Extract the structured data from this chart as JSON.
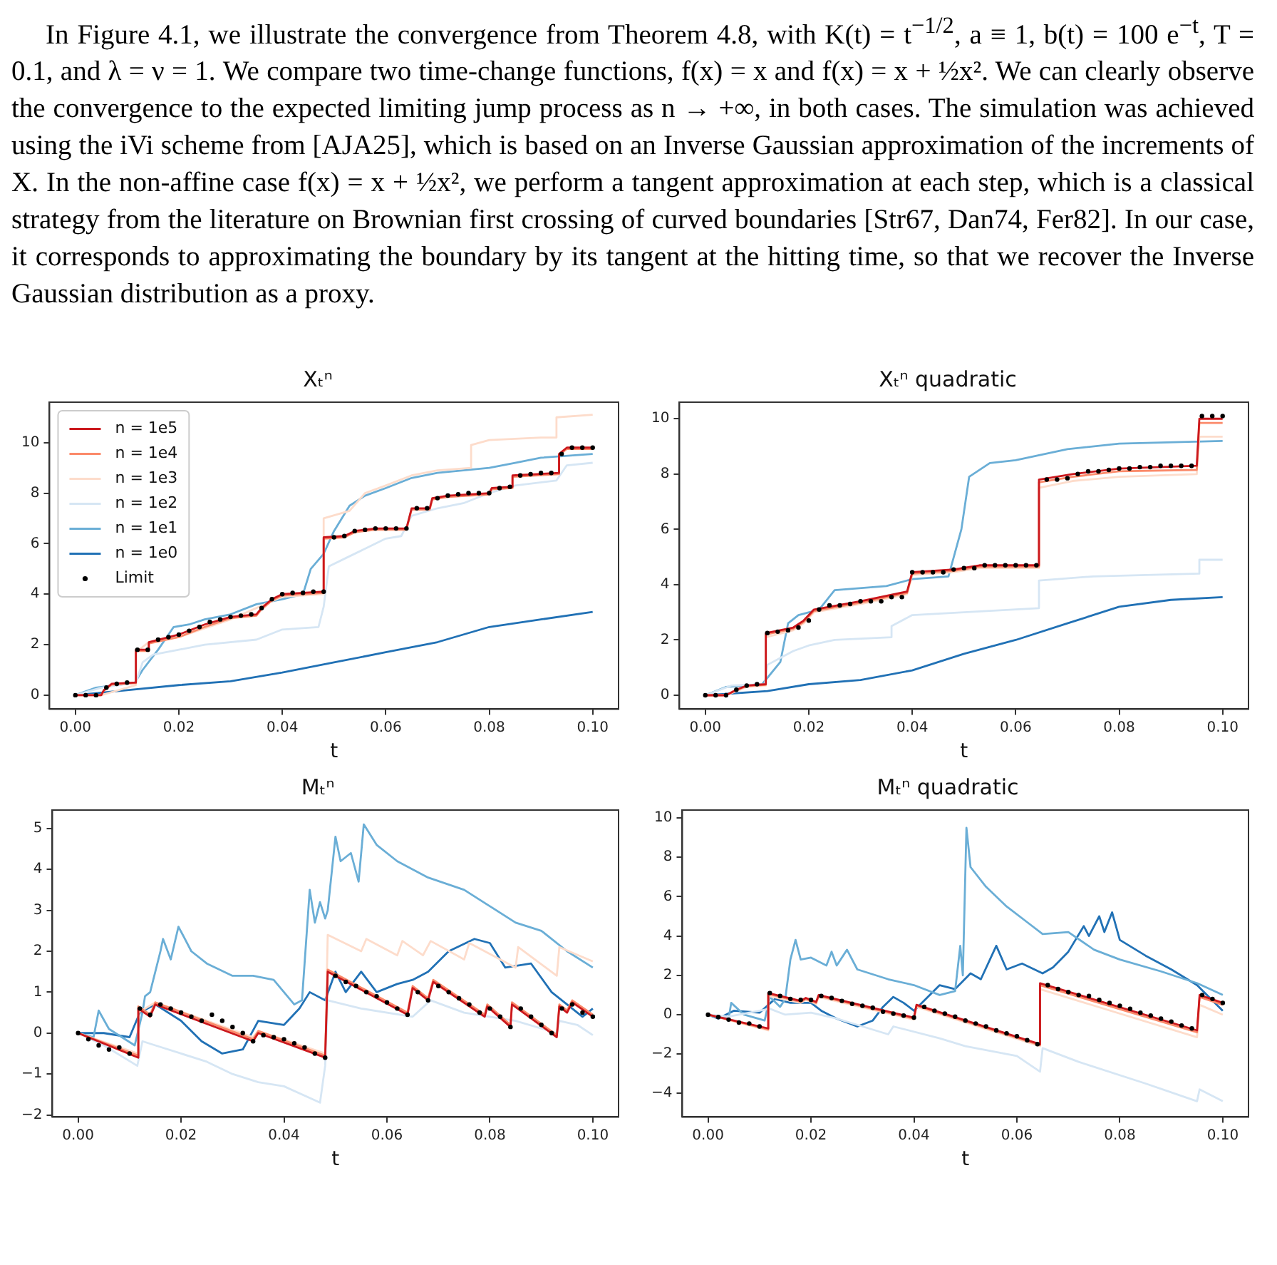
{
  "chart_data": [
    {
      "type": "other",
      "annotations": [
        "In Figure 4.1, we illustrate the convergence from Theorem 4.8, with K(t) = t$^{−1/2}$, a ≡ 1, b(t) = 100 e$^{−t}$, T = 0.1, and λ = ν = 1. We compare two time-change functions, f(x) = x and f(x) = x + ½x². We can clearly observe the convergence to the expected limiting jump process as n → +∞, in both cases. The simulation was achieved using the iVi scheme from [AJA25], which is based on an Inverse Gaussian approximation of the increments of X. In the non-affine case f(x) = x + ½x², we perform a tangent approximation at each step, which is a classical strategy from the literature on Brownian first crossing of curved boundaries [Str67, Dan74, Fer82]. In our case, it corresponds to approximating the boundary by its tangent at the hitting time, so that we recover the Inverse Gaussian distribution as a proxy."
      ]
    },
    {
      "type": "line",
      "title": "Xₜⁿ",
      "xlabel": "t",
      "xlim": [
        -0.005,
        0.105
      ],
      "xticks": [
        {
          "value": 0,
          "label": "0.00"
        },
        {
          "value": 0.02,
          "label": "0.02"
        },
        {
          "value": 0.04,
          "label": "0.04"
        },
        {
          "value": 0.06,
          "label": "0.06"
        },
        {
          "value": 0.08,
          "label": "0.08"
        },
        {
          "value": 0.1,
          "label": "0.10"
        }
      ],
      "ylim": [
        -0.55,
        11.6
      ],
      "yticks": [
        0,
        2,
        4,
        6,
        8,
        10
      ],
      "grid": false,
      "legend": "top left",
      "series": [
        {
          "name": "n = 1e5",
          "color": "#cb181d",
          "x": [
            0,
            0.005,
            0.0055,
            0.007,
            0.0117,
            0.0117,
            0.0142,
            0.0142,
            0.02,
            0.025,
            0.03,
            0.035,
            0.036,
            0.038,
            0.04,
            0.048,
            0.048,
            0.052,
            0.054,
            0.058,
            0.064,
            0.065,
            0.0685,
            0.069,
            0.072,
            0.08,
            0.0805,
            0.0845,
            0.0845,
            0.0935,
            0.0935,
            0.095,
            0.1
          ],
          "values": [
            0,
            0,
            0.2,
            0.45,
            0.5,
            1.8,
            1.8,
            2.1,
            2.4,
            2.8,
            3.1,
            3.2,
            3.45,
            3.8,
            4.0,
            4.1,
            6.25,
            6.3,
            6.5,
            6.6,
            6.6,
            7.4,
            7.4,
            7.8,
            7.9,
            8.0,
            8.2,
            8.25,
            8.7,
            8.8,
            9.55,
            9.8,
            9.8
          ]
        },
        {
          "name": "n = 1e4",
          "color": "#fb8a6a",
          "x": [
            0,
            0.005,
            0.0055,
            0.007,
            0.0117,
            0.0117,
            0.0142,
            0.0142,
            0.02,
            0.025,
            0.03,
            0.035,
            0.036,
            0.038,
            0.04,
            0.048,
            0.048,
            0.052,
            0.054,
            0.058,
            0.064,
            0.065,
            0.0685,
            0.069,
            0.072,
            0.08,
            0.0805,
            0.0845,
            0.0845,
            0.0935,
            0.0935,
            0.095,
            0.1
          ],
          "values": [
            0,
            0,
            0.18,
            0.42,
            0.48,
            1.75,
            1.75,
            2.05,
            2.3,
            2.7,
            3.05,
            3.15,
            3.4,
            3.75,
            3.95,
            4.05,
            6.2,
            6.25,
            6.45,
            6.55,
            6.55,
            7.35,
            7.35,
            7.75,
            7.85,
            7.95,
            8.15,
            8.2,
            8.65,
            8.75,
            9.5,
            9.75,
            9.75
          ]
        },
        {
          "name": "n = 1e3",
          "color": "#fddccb",
          "x": [
            0,
            0.005,
            0.0117,
            0.0117,
            0.0142,
            0.02,
            0.03,
            0.04,
            0.048,
            0.048,
            0.053,
            0.056,
            0.06,
            0.065,
            0.07,
            0.0765,
            0.0765,
            0.08,
            0.09,
            0.093,
            0.093,
            0.1
          ],
          "values": [
            0,
            0,
            0.4,
            1.7,
            2.1,
            2.3,
            3.0,
            3.9,
            4.0,
            7.0,
            7.3,
            8.0,
            8.3,
            8.7,
            8.9,
            9.0,
            9.9,
            10.1,
            10.2,
            10.2,
            11.0,
            11.1
          ]
        },
        {
          "name": "n = 1e2",
          "color": "#d6e6f4",
          "x": [
            0,
            0.005,
            0.0117,
            0.013,
            0.015,
            0.02,
            0.025,
            0.035,
            0.04,
            0.047,
            0.048,
            0.049,
            0.052,
            0.056,
            0.06,
            0.063,
            0.065,
            0.07,
            0.075,
            0.08,
            0.085,
            0.093,
            0.095,
            0.1
          ],
          "values": [
            0,
            0.3,
            0.5,
            1.3,
            1.6,
            1.8,
            2.0,
            2.2,
            2.6,
            2.7,
            3.5,
            5.1,
            5.4,
            5.8,
            6.2,
            6.3,
            7.1,
            7.4,
            7.6,
            8.0,
            8.3,
            8.5,
            9.1,
            9.2
          ]
        },
        {
          "name": "n = 1e1",
          "color": "#6aaed6",
          "x": [
            0,
            0.004,
            0.008,
            0.0115,
            0.013,
            0.016,
            0.019,
            0.022,
            0.025,
            0.03,
            0.035,
            0.04,
            0.044,
            0.0455,
            0.048,
            0.05,
            0.053,
            0.056,
            0.06,
            0.065,
            0.07,
            0.08,
            0.085,
            0.09,
            0.1
          ],
          "values": [
            0,
            0.3,
            0.4,
            0.5,
            1.0,
            1.8,
            2.7,
            2.8,
            3.0,
            3.2,
            3.6,
            3.8,
            4.0,
            5.0,
            5.6,
            6.5,
            7.5,
            7.9,
            8.2,
            8.6,
            8.8,
            9.0,
            9.2,
            9.4,
            9.55
          ]
        },
        {
          "name": "n = 1e0",
          "color": "#2171b5",
          "x": [
            0,
            0.005,
            0.01,
            0.02,
            0.03,
            0.04,
            0.05,
            0.06,
            0.07,
            0.08,
            0.09,
            0.1
          ],
          "values": [
            0,
            0.1,
            0.2,
            0.4,
            0.55,
            0.9,
            1.3,
            1.7,
            2.1,
            2.7,
            3.0,
            3.3
          ]
        },
        {
          "name": "Limit",
          "type": "scatter",
          "marker": "circle",
          "color": "#000000",
          "x": [
            0,
            0.002,
            0.004,
            0.006,
            0.008,
            0.01,
            0.012,
            0.014,
            0.016,
            0.018,
            0.02,
            0.022,
            0.024,
            0.026,
            0.028,
            0.03,
            0.032,
            0.034,
            0.036,
            0.038,
            0.04,
            0.042,
            0.044,
            0.046,
            0.048,
            0.05,
            0.052,
            0.054,
            0.056,
            0.058,
            0.06,
            0.062,
            0.064,
            0.066,
            0.068,
            0.07,
            0.072,
            0.074,
            0.076,
            0.078,
            0.08,
            0.082,
            0.084,
            0.086,
            0.088,
            0.09,
            0.092,
            0.094,
            0.096,
            0.098,
            0.1
          ],
          "values": [
            0,
            0,
            0,
            0.3,
            0.45,
            0.5,
            1.8,
            1.8,
            2.2,
            2.3,
            2.4,
            2.55,
            2.7,
            2.9,
            3.0,
            3.1,
            3.15,
            3.2,
            3.45,
            3.8,
            4.0,
            4.05,
            4.05,
            4.1,
            4.1,
            6.25,
            6.3,
            6.5,
            6.55,
            6.6,
            6.6,
            6.6,
            6.6,
            7.4,
            7.4,
            7.8,
            7.9,
            7.95,
            8.0,
            8.0,
            8.0,
            8.2,
            8.25,
            8.7,
            8.75,
            8.8,
            8.8,
            9.55,
            9.8,
            9.8,
            9.8
          ]
        }
      ]
    },
    {
      "type": "line",
      "title": "Xₜⁿ quadratic",
      "xlabel": "t",
      "xlim": [
        -0.005,
        0.105
      ],
      "xticks": [
        {
          "value": 0,
          "label": "0.00"
        },
        {
          "value": 0.02,
          "label": "0.02"
        },
        {
          "value": 0.04,
          "label": "0.04"
        },
        {
          "value": 0.06,
          "label": "0.06"
        },
        {
          "value": 0.08,
          "label": "0.08"
        },
        {
          "value": 0.1,
          "label": "0.10"
        }
      ],
      "ylim": [
        -0.5,
        10.6
      ],
      "yticks": [
        0,
        2,
        4,
        6,
        8,
        10
      ],
      "grid": false,
      "series": [
        {
          "color": "#cb181d",
          "x": [
            0,
            0.004,
            0.006,
            0.008,
            0.0117,
            0.0117,
            0.017,
            0.019,
            0.021,
            0.03,
            0.039,
            0.04,
            0.048,
            0.053,
            0.0645,
            0.0645,
            0.071,
            0.08,
            0.095,
            0.0955,
            0.1
          ],
          "values": [
            0,
            0,
            0.2,
            0.35,
            0.4,
            2.25,
            2.45,
            2.7,
            3.1,
            3.4,
            3.75,
            4.45,
            4.55,
            4.7,
            4.7,
            7.8,
            8.0,
            8.2,
            8.3,
            10.0,
            10.0
          ]
        },
        {
          "color": "#fb8a6a",
          "x": [
            0,
            0.004,
            0.006,
            0.008,
            0.0117,
            0.0117,
            0.017,
            0.019,
            0.021,
            0.03,
            0.039,
            0.04,
            0.048,
            0.053,
            0.0645,
            0.0645,
            0.071,
            0.08,
            0.095,
            0.0955,
            0.1
          ],
          "values": [
            0,
            0,
            0.18,
            0.33,
            0.38,
            2.2,
            2.4,
            2.65,
            3.05,
            3.35,
            3.7,
            4.4,
            4.5,
            4.65,
            4.65,
            7.7,
            7.9,
            8.1,
            8.15,
            9.85,
            9.85
          ]
        },
        {
          "color": "#fddccb",
          "x": [
            0,
            0.004,
            0.006,
            0.008,
            0.0117,
            0.0117,
            0.017,
            0.019,
            0.021,
            0.03,
            0.039,
            0.04,
            0.048,
            0.053,
            0.0645,
            0.0645,
            0.071,
            0.08,
            0.095,
            0.0955,
            0.1
          ],
          "values": [
            0,
            0,
            0.15,
            0.3,
            0.35,
            2.1,
            2.35,
            2.6,
            3.0,
            3.3,
            3.65,
            4.35,
            4.45,
            4.6,
            4.6,
            7.5,
            7.75,
            7.9,
            8.0,
            9.35,
            9.35
          ]
        },
        {
          "color": "#d6e6f4",
          "x": [
            0,
            0.005,
            0.0115,
            0.012,
            0.015,
            0.017,
            0.02,
            0.025,
            0.036,
            0.036,
            0.04,
            0.05,
            0.0645,
            0.0645,
            0.075,
            0.0955,
            0.0955,
            0.1
          ],
          "values": [
            0,
            0.35,
            0.4,
            1.1,
            1.4,
            1.6,
            1.8,
            2.0,
            2.1,
            2.5,
            2.9,
            3.0,
            3.15,
            4.15,
            4.3,
            4.4,
            4.9,
            4.9
          ]
        },
        {
          "color": "#6aaed6",
          "x": [
            0,
            0.004,
            0.011,
            0.0145,
            0.016,
            0.018,
            0.022,
            0.025,
            0.035,
            0.04,
            0.047,
            0.0495,
            0.051,
            0.055,
            0.06,
            0.065,
            0.07,
            0.08,
            0.1
          ],
          "values": [
            0,
            0.3,
            0.4,
            1.2,
            2.6,
            2.9,
            3.1,
            3.8,
            3.95,
            4.2,
            4.3,
            6.0,
            7.9,
            8.4,
            8.5,
            8.7,
            8.9,
            9.1,
            9.2
          ]
        },
        {
          "color": "#2171b5",
          "x": [
            0,
            0.012,
            0.02,
            0.03,
            0.04,
            0.05,
            0.06,
            0.07,
            0.08,
            0.09,
            0.1
          ],
          "values": [
            0,
            0.15,
            0.4,
            0.55,
            0.9,
            1.5,
            2.0,
            2.6,
            3.2,
            3.45,
            3.55
          ]
        },
        {
          "type": "scatter",
          "marker": "circle",
          "color": "#000000",
          "x": [
            0,
            0.002,
            0.004,
            0.006,
            0.008,
            0.01,
            0.012,
            0.014,
            0.016,
            0.018,
            0.02,
            0.022,
            0.024,
            0.026,
            0.028,
            0.03,
            0.032,
            0.034,
            0.036,
            0.038,
            0.04,
            0.042,
            0.044,
            0.046,
            0.048,
            0.05,
            0.052,
            0.054,
            0.056,
            0.058,
            0.06,
            0.062,
            0.064,
            0.066,
            0.068,
            0.07,
            0.072,
            0.074,
            0.076,
            0.078,
            0.08,
            0.082,
            0.084,
            0.086,
            0.088,
            0.09,
            0.092,
            0.094,
            0.096,
            0.098,
            0.1
          ],
          "values": [
            0,
            0,
            0,
            0.2,
            0.35,
            0.4,
            2.25,
            2.3,
            2.35,
            2.45,
            2.7,
            3.1,
            3.25,
            3.25,
            3.3,
            3.4,
            3.4,
            3.4,
            3.55,
            3.55,
            4.45,
            4.45,
            4.45,
            4.45,
            4.55,
            4.6,
            4.6,
            4.7,
            4.7,
            4.7,
            4.7,
            4.7,
            4.7,
            7.8,
            7.8,
            7.85,
            8.0,
            8.1,
            8.1,
            8.15,
            8.2,
            8.2,
            8.25,
            8.25,
            8.3,
            8.3,
            8.3,
            8.3,
            10.1,
            10.1,
            10.1
          ]
        }
      ]
    },
    {
      "type": "line",
      "title": "Mₜⁿ",
      "xlabel": "t",
      "xlim": [
        -0.005,
        0.105
      ],
      "xticks": [
        {
          "value": 0,
          "label": "0.00"
        },
        {
          "value": 0.02,
          "label": "0.02"
        },
        {
          "value": 0.04,
          "label": "0.04"
        },
        {
          "value": 0.06,
          "label": "0.06"
        },
        {
          "value": 0.08,
          "label": "0.08"
        },
        {
          "value": 0.1,
          "label": "0.10"
        }
      ],
      "ylim": [
        -2.05,
        5.45
      ],
      "yticks": [
        -2,
        -1,
        0,
        1,
        2,
        3,
        4,
        5
      ],
      "grid": false,
      "series": [
        {
          "color": "#cb181d",
          "x": [
            0,
            0.0117,
            0.0117,
            0.014,
            0.015,
            0.034,
            0.035,
            0.048,
            0.0485,
            0.064,
            0.065,
            0.068,
            0.069,
            0.079,
            0.0795,
            0.084,
            0.0843,
            0.093,
            0.0935,
            0.095,
            0.096,
            0.1
          ],
          "values": [
            0,
            -0.6,
            0.6,
            0.4,
            0.7,
            -0.2,
            0.0,
            -0.6,
            1.5,
            0.45,
            1.1,
            0.8,
            1.25,
            0.4,
            0.65,
            0.15,
            0.7,
            -0.1,
            0.65,
            0.5,
            0.75,
            0.4
          ]
        },
        {
          "color": "#fb8a6a",
          "x": [
            0,
            0.0117,
            0.0117,
            0.014,
            0.015,
            0.034,
            0.035,
            0.048,
            0.0485,
            0.064,
            0.065,
            0.068,
            0.069,
            0.079,
            0.0795,
            0.084,
            0.0843,
            0.093,
            0.0935,
            0.095,
            0.096,
            0.1
          ],
          "values": [
            0,
            -0.55,
            0.65,
            0.45,
            0.75,
            -0.15,
            0.05,
            -0.55,
            1.55,
            0.5,
            1.15,
            0.85,
            1.3,
            0.45,
            0.7,
            0.2,
            0.75,
            -0.05,
            0.7,
            0.55,
            0.8,
            0.45
          ]
        },
        {
          "color": "#fddccb",
          "x": [
            0,
            0.0117,
            0.0117,
            0.015,
            0.034,
            0.035,
            0.048,
            0.0485,
            0.055,
            0.056,
            0.062,
            0.063,
            0.067,
            0.0685,
            0.075,
            0.076,
            0.085,
            0.0855,
            0.093,
            0.0935,
            0.1
          ],
          "values": [
            0,
            -0.5,
            0.5,
            0.75,
            -0.1,
            0.05,
            -0.5,
            2.4,
            2.0,
            2.3,
            1.9,
            2.25,
            1.9,
            2.25,
            1.8,
            2.2,
            1.6,
            2.1,
            1.4,
            2.1,
            1.75
          ]
        },
        {
          "color": "#d6e6f4",
          "x": [
            0,
            0.005,
            0.0115,
            0.0125,
            0.015,
            0.02,
            0.025,
            0.03,
            0.035,
            0.04,
            0.047,
            0.048,
            0.0485,
            0.055,
            0.065,
            0.0685,
            0.075,
            0.085,
            0.093,
            0.0935,
            0.097,
            0.1
          ],
          "values": [
            0,
            -0.3,
            -0.8,
            -0.2,
            -0.3,
            -0.5,
            -0.7,
            -1.0,
            -1.2,
            -1.3,
            -1.7,
            -0.8,
            0.8,
            0.6,
            0.4,
            0.8,
            0.5,
            0.3,
            0.0,
            0.3,
            0.2,
            -0.05
          ]
        },
        {
          "color": "#6aaed6",
          "x": [
            0,
            0.003,
            0.004,
            0.006,
            0.011,
            0.0125,
            0.013,
            0.014,
            0.016,
            0.0165,
            0.018,
            0.0195,
            0.022,
            0.025,
            0.03,
            0.034,
            0.038,
            0.04,
            0.042,
            0.0435,
            0.045,
            0.046,
            0.047,
            0.048,
            0.0485,
            0.05,
            0.051,
            0.053,
            0.0545,
            0.0555,
            0.058,
            0.062,
            0.065,
            0.068,
            0.075,
            0.08,
            0.085,
            0.09,
            0.095,
            0.1
          ],
          "values": [
            0,
            -0.1,
            0.55,
            0.1,
            -0.3,
            0.5,
            0.9,
            1.0,
            2.0,
            2.3,
            1.8,
            2.6,
            2.0,
            1.7,
            1.4,
            1.4,
            1.3,
            1.0,
            0.7,
            0.8,
            3.5,
            2.7,
            3.2,
            2.8,
            3.0,
            4.8,
            4.2,
            4.4,
            3.7,
            5.1,
            4.6,
            4.2,
            4.0,
            3.8,
            3.5,
            3.1,
            2.7,
            2.5,
            2.0,
            1.6
          ]
        },
        {
          "color": "#2171b5",
          "x": [
            0,
            0.005,
            0.01,
            0.012,
            0.015,
            0.02,
            0.024,
            0.028,
            0.032,
            0.035,
            0.04,
            0.043,
            0.045,
            0.048,
            0.05,
            0.052,
            0.055,
            0.058,
            0.062,
            0.065,
            0.068,
            0.072,
            0.077,
            0.08,
            0.083,
            0.088,
            0.092,
            0.095,
            0.098,
            0.1
          ],
          "values": [
            0,
            0.0,
            -0.1,
            0.5,
            0.7,
            0.3,
            -0.2,
            -0.5,
            -0.4,
            0.3,
            0.2,
            0.6,
            1.0,
            0.8,
            1.5,
            1.0,
            1.5,
            1.0,
            1.2,
            1.3,
            1.5,
            2.0,
            2.3,
            2.2,
            1.6,
            1.7,
            1.0,
            0.7,
            0.4,
            0.6
          ]
        },
        {
          "type": "scatter",
          "marker": "circle",
          "color": "#000000",
          "x": [
            0,
            0.002,
            0.004,
            0.006,
            0.008,
            0.01,
            0.012,
            0.014,
            0.016,
            0.018,
            0.02,
            0.022,
            0.024,
            0.026,
            0.028,
            0.03,
            0.032,
            0.034,
            0.036,
            0.038,
            0.04,
            0.042,
            0.044,
            0.046,
            0.048,
            0.05,
            0.052,
            0.054,
            0.056,
            0.058,
            0.06,
            0.062,
            0.064,
            0.066,
            0.068,
            0.07,
            0.072,
            0.074,
            0.076,
            0.078,
            0.08,
            0.082,
            0.084,
            0.086,
            0.088,
            0.09,
            0.092,
            0.094,
            0.096,
            0.098,
            0.1
          ],
          "values": [
            0,
            -0.15,
            -0.3,
            -0.4,
            -0.35,
            -0.5,
            0.6,
            0.45,
            0.7,
            0.6,
            0.5,
            0.4,
            0.3,
            0.45,
            0.3,
            0.15,
            0.0,
            -0.2,
            -0.05,
            -0.1,
            -0.15,
            -0.25,
            -0.35,
            -0.5,
            -0.6,
            1.4,
            1.25,
            1.15,
            1.0,
            0.9,
            0.75,
            0.6,
            0.45,
            1.0,
            0.8,
            1.15,
            1.0,
            0.85,
            0.7,
            0.5,
            0.6,
            0.4,
            0.15,
            0.6,
            0.4,
            0.2,
            0.0,
            0.6,
            0.7,
            0.5,
            0.4
          ]
        }
      ]
    },
    {
      "type": "line",
      "title": "Mₜⁿ quadratic",
      "xlabel": "t",
      "xlim": [
        -0.005,
        0.105
      ],
      "xticks": [
        {
          "value": 0,
          "label": "0.00"
        },
        {
          "value": 0.02,
          "label": "0.02"
        },
        {
          "value": 0.04,
          "label": "0.04"
        },
        {
          "value": 0.06,
          "label": "0.06"
        },
        {
          "value": 0.08,
          "label": "0.08"
        },
        {
          "value": 0.1,
          "label": "0.10"
        }
      ],
      "ylim": [
        -5.2,
        10.4
      ],
      "yticks": [
        -4,
        -2,
        0,
        2,
        4,
        6,
        8,
        10
      ],
      "grid": false,
      "series": [
        {
          "color": "#cb181d",
          "x": [
            0,
            0.0117,
            0.0117,
            0.018,
            0.019,
            0.021,
            0.0215,
            0.04,
            0.0405,
            0.0645,
            0.0645,
            0.095,
            0.0955,
            0.1
          ],
          "values": [
            0,
            -0.7,
            1.1,
            0.7,
            0.85,
            0.65,
            1.0,
            -0.15,
            0.5,
            -1.5,
            1.6,
            -0.8,
            1.0,
            0.6
          ]
        },
        {
          "color": "#fb8a6a",
          "x": [
            0,
            0.0117,
            0.0117,
            0.018,
            0.019,
            0.021,
            0.0215,
            0.04,
            0.0405,
            0.0645,
            0.0645,
            0.095,
            0.0955,
            0.1
          ],
          "values": [
            0,
            -0.75,
            1.05,
            0.65,
            0.8,
            0.6,
            0.95,
            -0.2,
            0.45,
            -1.55,
            1.5,
            -0.9,
            0.9,
            0.5
          ]
        },
        {
          "color": "#fddccb",
          "x": [
            0,
            0.0117,
            0.0117,
            0.018,
            0.019,
            0.021,
            0.0215,
            0.04,
            0.0405,
            0.0645,
            0.0645,
            0.095,
            0.0955,
            0.1
          ],
          "values": [
            0,
            -0.8,
            0.95,
            0.6,
            0.75,
            0.55,
            0.9,
            -0.25,
            0.4,
            -1.6,
            1.3,
            -1.15,
            0.5,
            0.0
          ]
        },
        {
          "color": "#d6e6f4",
          "x": [
            0,
            0.004,
            0.012,
            0.015,
            0.02,
            0.025,
            0.03,
            0.035,
            0.036,
            0.045,
            0.05,
            0.06,
            0.0645,
            0.065,
            0.072,
            0.085,
            0.095,
            0.0955,
            0.1
          ],
          "values": [
            0,
            -0.1,
            0.3,
            0.0,
            0.1,
            -0.2,
            -0.6,
            -1.0,
            -0.6,
            -1.2,
            -1.6,
            -2.1,
            -2.9,
            -1.7,
            -2.4,
            -3.5,
            -4.4,
            -3.8,
            -4.4
          ]
        },
        {
          "color": "#6aaed6",
          "x": [
            0,
            0.004,
            0.0045,
            0.007,
            0.011,
            0.012,
            0.014,
            0.015,
            0.016,
            0.017,
            0.018,
            0.02,
            0.023,
            0.024,
            0.025,
            0.027,
            0.029,
            0.035,
            0.04,
            0.045,
            0.048,
            0.049,
            0.0495,
            0.0502,
            0.051,
            0.054,
            0.058,
            0.062,
            0.065,
            0.07,
            0.075,
            0.08,
            0.088,
            0.095,
            0.1
          ],
          "values": [
            0,
            -0.2,
            0.6,
            0.0,
            -0.3,
            0.9,
            0.4,
            0.8,
            2.8,
            3.8,
            2.8,
            2.9,
            2.5,
            3.2,
            2.5,
            3.3,
            2.3,
            1.8,
            1.5,
            1.0,
            1.2,
            3.5,
            2.0,
            9.5,
            7.5,
            6.5,
            5.5,
            4.7,
            4.1,
            4.2,
            3.3,
            2.8,
            2.2,
            1.6,
            1.0
          ]
        },
        {
          "color": "#2171b5",
          "x": [
            0,
            0.002,
            0.005,
            0.01,
            0.013,
            0.016,
            0.02,
            0.022,
            0.025,
            0.029,
            0.032,
            0.034,
            0.036,
            0.038,
            0.04,
            0.045,
            0.048,
            0.051,
            0.053,
            0.056,
            0.058,
            0.061,
            0.065,
            0.067,
            0.07,
            0.073,
            0.074,
            0.076,
            0.077,
            0.0785,
            0.08,
            0.085,
            0.09,
            0.095,
            0.1
          ],
          "values": [
            0,
            -0.2,
            0.2,
            0.1,
            0.8,
            0.6,
            0.6,
            0.2,
            -0.2,
            -0.6,
            -0.3,
            0.4,
            0.9,
            0.6,
            0.2,
            1.5,
            1.3,
            2.1,
            1.8,
            3.5,
            2.3,
            2.6,
            2.1,
            2.4,
            3.2,
            4.5,
            4.0,
            5.0,
            4.2,
            5.2,
            3.8,
            3.0,
            2.3,
            1.5,
            0.2
          ]
        },
        {
          "type": "scatter",
          "marker": "circle",
          "color": "#000000",
          "x": [
            0,
            0.002,
            0.004,
            0.006,
            0.008,
            0.01,
            0.012,
            0.014,
            0.016,
            0.018,
            0.02,
            0.022,
            0.024,
            0.026,
            0.028,
            0.03,
            0.032,
            0.034,
            0.036,
            0.038,
            0.04,
            0.042,
            0.044,
            0.046,
            0.048,
            0.05,
            0.052,
            0.054,
            0.056,
            0.058,
            0.06,
            0.062,
            0.064,
            0.066,
            0.068,
            0.07,
            0.072,
            0.074,
            0.076,
            0.078,
            0.08,
            0.082,
            0.084,
            0.086,
            0.088,
            0.09,
            0.092,
            0.094,
            0.096,
            0.098,
            0.1
          ],
          "values": [
            0,
            -0.12,
            -0.25,
            -0.4,
            -0.45,
            -0.6,
            1.1,
            0.95,
            0.8,
            0.75,
            0.75,
            0.95,
            0.85,
            0.7,
            0.55,
            0.45,
            0.35,
            0.15,
            0.05,
            -0.05,
            -0.15,
            0.4,
            0.2,
            0.05,
            -0.1,
            -0.3,
            -0.45,
            -0.6,
            -0.8,
            -0.95,
            -1.1,
            -1.3,
            -1.5,
            1.5,
            1.3,
            1.15,
            1.0,
            0.95,
            0.75,
            0.6,
            0.45,
            0.3,
            0.1,
            -0.05,
            -0.2,
            -0.35,
            -0.55,
            -0.7,
            1.0,
            0.8,
            0.6
          ]
        }
      ]
    }
  ]
}
